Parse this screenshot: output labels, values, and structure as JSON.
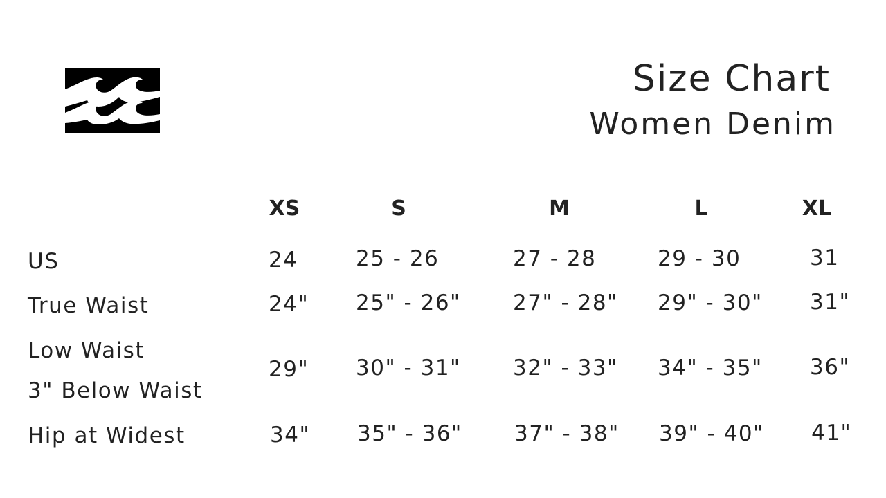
{
  "brand": {
    "logo": "billabong-wave-logo"
  },
  "header": {
    "title": "Size Chart",
    "subtitle": "Women Denim"
  },
  "table": {
    "columns": [
      "XS",
      "S",
      "M",
      "L",
      "XL"
    ],
    "rows": [
      {
        "label": "US",
        "values": [
          "24",
          "25 - 26",
          "27 - 28",
          "29 - 30",
          "31"
        ]
      },
      {
        "label": "True Waist",
        "values": [
          "24\"",
          "25\" - 26\"",
          "27\" - 28\"",
          "29\" - 30\"",
          "31\""
        ]
      },
      {
        "label": "Low Waist",
        "label2": "3\" Below Waist",
        "values": [
          "29\"",
          "30\" - 31\"",
          "32\" - 33\"",
          "34\" - 35\"",
          "36\""
        ]
      },
      {
        "label": "Hip at Widest",
        "values": [
          "34\"",
          "35\" - 36\"",
          "37\" - 38\"",
          "39\" - 40\"",
          "41\""
        ]
      }
    ]
  }
}
